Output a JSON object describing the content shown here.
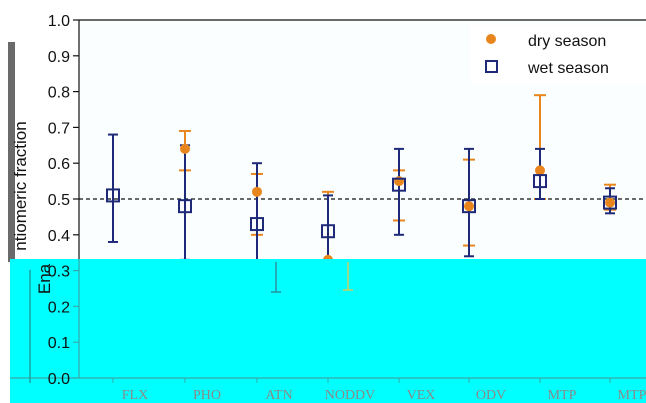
{
  "chart_data": {
    "type": "scatter",
    "ylabel": "Enantiomeric fraction",
    "ylabel_visible_top": "ntiomeric fraction",
    "ylabel_visible_bottom": "Ena",
    "ylim": [
      0.0,
      1.0
    ],
    "yticks": [
      "0.0",
      "0.1",
      "0.2",
      "0.3",
      "0.4",
      "0.5",
      "0.6",
      "0.7",
      "0.8",
      "0.9",
      "1.0"
    ],
    "reference_line": 0.5,
    "legend_position": "top-right",
    "categories": [
      "FLX",
      "PHO",
      "ATN",
      "NODDV",
      "VEX",
      "ODV",
      "MTP",
      "MTP"
    ],
    "series": [
      {
        "name": "dry season",
        "marker": "circle",
        "color": "#e8861d",
        "values": [
          null,
          0.64,
          0.52,
          0.33,
          0.55,
          0.48,
          0.58,
          0.49
        ],
        "err_low": [
          null,
          0.58,
          0.4,
          0.3,
          0.44,
          0.37,
          0.5,
          0.47
        ],
        "err_high": [
          null,
          0.69,
          0.57,
          0.52,
          0.58,
          0.61,
          0.79,
          0.54
        ]
      },
      {
        "name": "wet season",
        "marker": "open-square",
        "color": "#1e2a78",
        "values": [
          0.51,
          0.48,
          0.43,
          0.41,
          0.54,
          0.48,
          0.55,
          0.49
        ],
        "err_low": [
          0.38,
          0.33,
          0.24,
          0.31,
          0.4,
          0.34,
          0.5,
          0.46
        ],
        "err_high": [
          0.68,
          0.65,
          0.6,
          0.51,
          0.64,
          0.64,
          0.64,
          0.53
        ]
      }
    ],
    "overlay_color": "#00ffff"
  }
}
